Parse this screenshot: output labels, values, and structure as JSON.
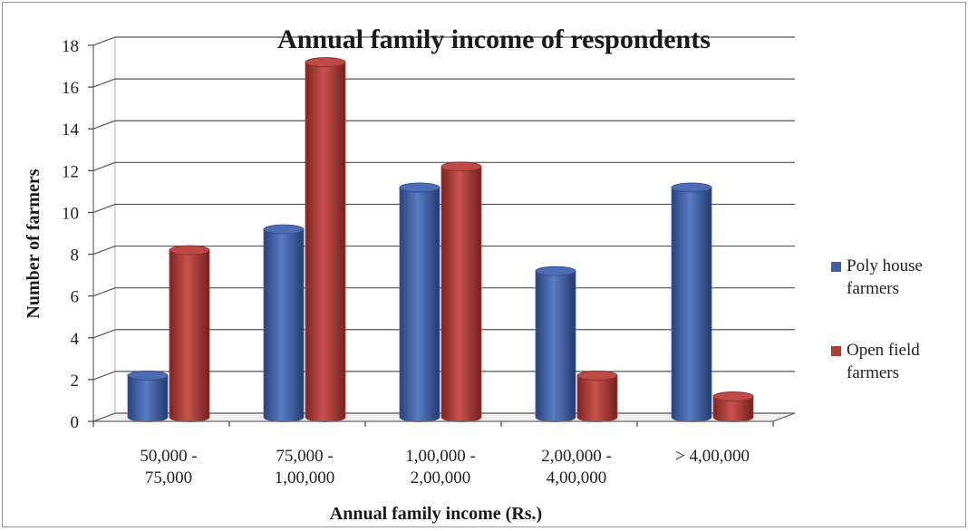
{
  "chart_data": {
    "type": "bar",
    "title": "Annual family income of respondents",
    "xlabel": "Annual family income (Rs.)",
    "ylabel": "Number of farmers",
    "ylim": [
      0,
      18
    ],
    "yticks": [
      0,
      2,
      4,
      6,
      8,
      10,
      12,
      14,
      16,
      18
    ],
    "categories": [
      [
        "50,000 -",
        "75,000"
      ],
      [
        "75,000 -",
        "1,00,000"
      ],
      [
        "1,00,000 -",
        "2,00,000"
      ],
      [
        "2,00,000 -",
        "4,00,000"
      ],
      [
        "> 4,00,000"
      ]
    ],
    "series": [
      {
        "name": [
          "Poly house",
          "farmers"
        ],
        "color": "#3f5fa6",
        "values": [
          2,
          9,
          11,
          7,
          11
        ]
      },
      {
        "name": [
          "Open field",
          "farmers"
        ],
        "color": "#b03a36",
        "values": [
          8,
          17,
          12,
          2,
          1
        ]
      }
    ],
    "grid": true,
    "legend": "right",
    "style": "3d-cylinder"
  }
}
